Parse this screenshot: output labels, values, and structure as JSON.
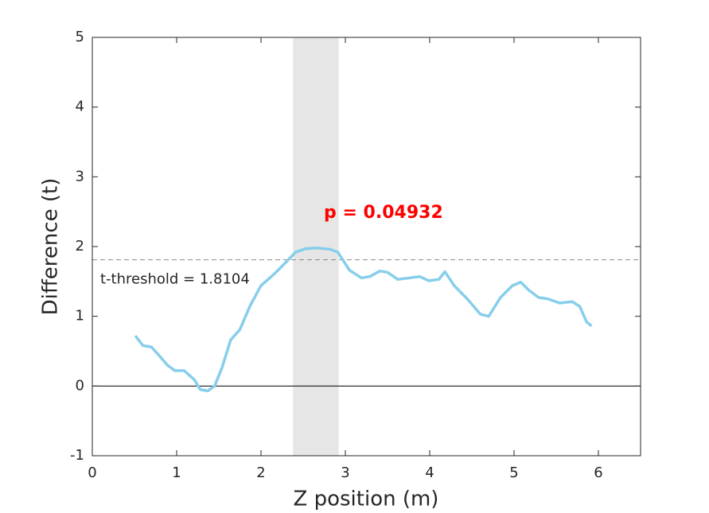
{
  "chart_data": {
    "type": "line",
    "xlabel": "Z position (m)",
    "ylabel": "Difference (t)",
    "x": [
      0.51,
      0.6,
      0.7,
      0.79,
      0.89,
      0.98,
      1.09,
      1.21,
      1.28,
      1.37,
      1.45,
      1.54,
      1.64,
      1.75,
      1.87,
      2.0,
      2.16,
      2.3,
      2.41,
      2.53,
      2.67,
      2.82,
      2.91,
      3.05,
      3.19,
      3.29,
      3.41,
      3.5,
      3.62,
      3.76,
      3.88,
      3.99,
      4.11,
      4.18,
      4.29,
      4.46,
      4.6,
      4.7,
      4.84,
      4.98,
      5.08,
      5.17,
      5.29,
      5.4,
      5.54,
      5.69,
      5.78,
      5.86,
      5.92
    ],
    "series": [
      {
        "color": "#87ceeb",
        "values": [
          0.72,
          0.58,
          0.56,
          0.44,
          0.3,
          0.22,
          0.22,
          0.09,
          -0.05,
          -0.07,
          0.0,
          0.27,
          0.66,
          0.81,
          1.15,
          1.44,
          1.61,
          1.78,
          1.92,
          1.97,
          1.98,
          1.96,
          1.92,
          1.66,
          1.55,
          1.57,
          1.65,
          1.63,
          1.53,
          1.55,
          1.57,
          1.51,
          1.53,
          1.64,
          1.44,
          1.23,
          1.03,
          1.0,
          1.27,
          1.44,
          1.49,
          1.38,
          1.27,
          1.25,
          1.19,
          1.21,
          1.14,
          0.92,
          0.86
        ]
      }
    ],
    "xlim": [
      0,
      6.5
    ],
    "ylim": [
      -1,
      5
    ],
    "xticks": [
      0,
      1,
      2,
      3,
      4,
      5,
      6
    ],
    "yticks": [
      -1,
      0,
      1,
      2,
      3,
      4,
      5
    ],
    "threshold": 1.8104,
    "threshold_label": "t-threshold = 1.8104",
    "zero_line": 0,
    "significant_region": [
      2.38,
      2.92
    ],
    "p_label": "p = 0.04932"
  }
}
